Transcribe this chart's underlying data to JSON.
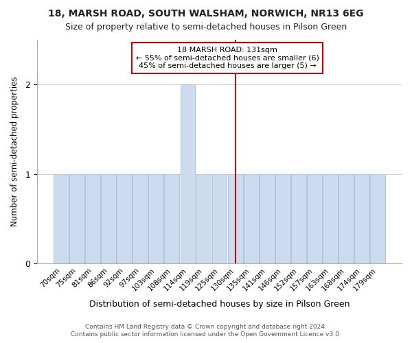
{
  "title": "18, MARSH ROAD, SOUTH WALSHAM, NORWICH, NR13 6EG",
  "subtitle": "Size of property relative to semi-detached houses in Pilson Green",
  "xlabel": "Distribution of semi-detached houses by size in Pilson Green",
  "ylabel": "Number of semi-detached properties",
  "categories": [
    "70sqm",
    "75sqm",
    "81sqm",
    "86sqm",
    "92sqm",
    "97sqm",
    "103sqm",
    "108sqm",
    "114sqm",
    "119sqm",
    "125sqm",
    "130sqm",
    "135sqm",
    "141sqm",
    "146sqm",
    "152sqm",
    "157sqm",
    "163sqm",
    "168sqm",
    "174sqm",
    "179sqm"
  ],
  "values": [
    1,
    1,
    1,
    1,
    1,
    1,
    1,
    1,
    2,
    1,
    1,
    1,
    1,
    1,
    1,
    1,
    1,
    1,
    1,
    1,
    1
  ],
  "bar_color": "#ccdcee",
  "bar_edgecolor": "#adc4de",
  "marker_line_index": 11,
  "marker_line_color": "#cc0000",
  "ylim": [
    0,
    2.5
  ],
  "yticks": [
    0,
    1,
    2
  ],
  "annotation_title": "18 MARSH ROAD: 131sqm",
  "annotation_line1": "← 55% of semi-detached houses are smaller (6)",
  "annotation_line2": "45% of semi-detached houses are larger (5) →",
  "annotation_box_facecolor": "#ffffff",
  "annotation_box_edgecolor": "#cc0000",
  "footer_line1": "Contains HM Land Registry data © Crown copyright and database right 2024.",
  "footer_line2": "Contains public sector information licensed under the Open Government Licence v3.0.",
  "background_color": "#ffffff",
  "grid_color": "#cccccc",
  "title_fontsize": 10,
  "subtitle_fontsize": 9
}
